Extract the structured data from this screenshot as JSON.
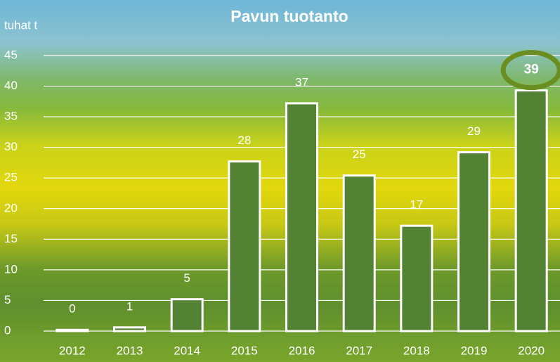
{
  "chart_data": {
    "type": "bar",
    "title": "Pavun tuotanto",
    "y_label": "tuhat t",
    "categories": [
      "2012",
      "2013",
      "2014",
      "2015",
      "2016",
      "2017",
      "2018",
      "2019",
      "2020"
    ],
    "values": [
      0.2,
      0.6,
      5.2,
      27.7,
      37.2,
      25.4,
      17.2,
      29.2,
      39.3
    ],
    "value_labels": [
      "0",
      "1",
      "5",
      "28",
      "37",
      "25",
      "17",
      "29",
      "39"
    ],
    "color": "#548235",
    "ylim": [
      0,
      45
    ],
    "yticks": [
      0,
      5,
      10,
      15,
      20,
      25,
      30,
      35,
      40,
      45
    ],
    "grid": true
  }
}
